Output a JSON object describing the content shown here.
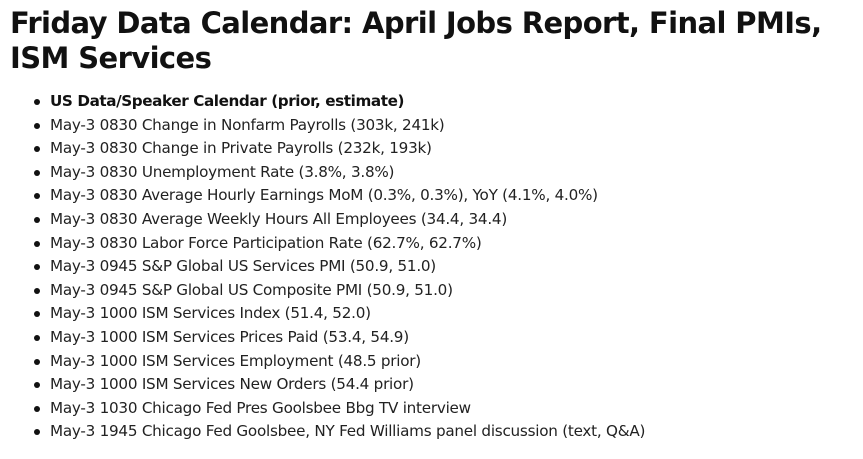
{
  "article": {
    "title": "Friday Data Calendar: April Jobs Report, Final PMIs, ISM Services",
    "list_header": "US Data/Speaker Calendar (prior, estimate)",
    "items": [
      "May-3 0830 Change in Nonfarm Payrolls (303k, 241k)",
      "May-3 0830 Change in Private Payrolls (232k, 193k)",
      "May-3 0830 Unemployment Rate (3.8%, 3.8%)",
      "May-3 0830 Average Hourly Earnings MoM (0.3%, 0.3%), YoY (4.1%, 4.0%)",
      "May-3 0830 Average Weekly Hours All Employees (34.4, 34.4)",
      "May-3 0830 Labor Force Participation Rate (62.7%, 62.7%)",
      "May-3 0945 S&P Global US Services PMI (50.9, 51.0)",
      "May-3 0945 S&P Global US Composite PMI (50.9, 51.0)",
      "May-3 1000 ISM Services Index (51.4, 52.0)",
      "May-3 1000 ISM Services Prices Paid (53.4, 54.9)",
      "May-3 1000 ISM Services Employment (48.5 prior)",
      "May-3 1000 ISM Services New Orders (54.4 prior)",
      "May-3 1030 Chicago Fed Pres Goolsbee Bbg TV interview",
      "May-3 1945 Chicago Fed Goolsbee, NY Fed Williams panel discussion (text, Q&A)"
    ]
  }
}
